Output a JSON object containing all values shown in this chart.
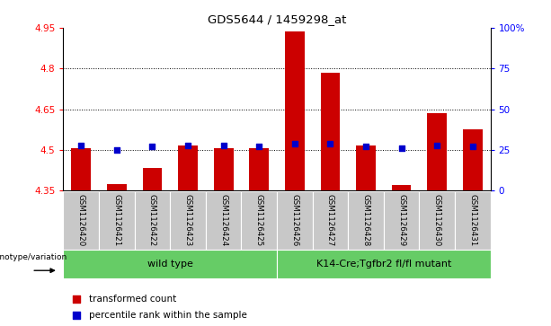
{
  "title": "GDS5644 / 1459298_at",
  "samples": [
    "GSM1126420",
    "GSM1126421",
    "GSM1126422",
    "GSM1126423",
    "GSM1126424",
    "GSM1126425",
    "GSM1126426",
    "GSM1126427",
    "GSM1126428",
    "GSM1126429",
    "GSM1126430",
    "GSM1126431"
  ],
  "red_values": [
    4.508,
    4.375,
    4.435,
    4.515,
    4.505,
    4.505,
    4.935,
    4.785,
    4.515,
    4.37,
    4.635,
    4.575
  ],
  "blue_values": [
    28,
    25,
    27,
    28,
    28,
    27,
    29,
    29,
    27,
    26,
    28,
    27
  ],
  "y_min": 4.35,
  "y_max": 4.95,
  "y_ticks_left": [
    4.35,
    4.5,
    4.65,
    4.8,
    4.95
  ],
  "y_ticks_right": [
    0,
    25,
    50,
    75,
    100
  ],
  "dotted_lines": [
    4.5,
    4.65,
    4.8
  ],
  "group1_label": "wild type",
  "group2_label": "K14-Cre;Tgfbr2 fl/fl mutant",
  "genotype_label": "genotype/variation",
  "legend_red": "transformed count",
  "legend_blue": "percentile rank within the sample",
  "bar_color": "#cc0000",
  "blue_color": "#0000cc",
  "group_bg_color": "#66cc66",
  "tick_bg_color": "#c8c8c8",
  "bar_width": 0.55
}
